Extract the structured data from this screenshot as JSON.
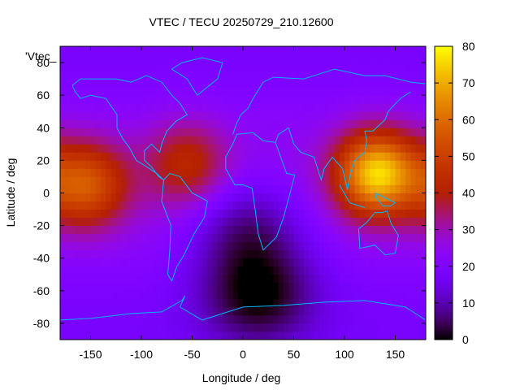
{
  "chart_data": {
    "type": "heatmap",
    "title": "VTEC / TECU 20250729_210.12600",
    "xlabel": "Longitude / deg",
    "ylabel": "Latitude / deg",
    "legend_key": "'Vtec_",
    "xlim": [
      -180,
      180
    ],
    "ylim": [
      -90,
      90
    ],
    "x_ticks": [
      -150,
      -100,
      -50,
      0,
      50,
      100,
      150
    ],
    "y_ticks": [
      -80,
      -60,
      -40,
      -20,
      0,
      20,
      40,
      60,
      80
    ],
    "colorbar": {
      "range": [
        0,
        80
      ],
      "ticks": [
        0,
        10,
        20,
        30,
        40,
        50,
        60,
        70,
        80
      ],
      "colormap": "black-purple-red-orange-yellow (gnuplot)"
    },
    "coastline_color": "#00b8ff",
    "grid": false,
    "field": {
      "background": 22,
      "features": [
        {
          "name": "Pacific crest",
          "lon": -155,
          "lat": 5,
          "peak": 52
        },
        {
          "name": "Asia-Pacific crest",
          "lon": 132,
          "lat": 12,
          "peak": 72
        },
        {
          "name": "Caribbean patch",
          "lon": -55,
          "lat": 18,
          "peak": 40
        },
        {
          "name": "South Atlantic low",
          "lon": 5,
          "lat": -20,
          "peak": 6
        },
        {
          "name": "Southern high-latitude low",
          "lon": 15,
          "lat": -62,
          "peak": 3
        }
      ]
    }
  }
}
